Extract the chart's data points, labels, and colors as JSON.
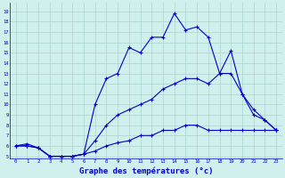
{
  "title": "Graphe des températures (°c)",
  "bg_color": "#cff0ec",
  "grid_color": "#aad4cc",
  "line_color": "#0000cc",
  "x_ticks": [
    0,
    1,
    2,
    3,
    4,
    5,
    6,
    7,
    8,
    9,
    10,
    11,
    12,
    13,
    14,
    15,
    16,
    17,
    18,
    19,
    20,
    21,
    22,
    23
  ],
  "y_ticks": [
    5,
    6,
    7,
    8,
    9,
    10,
    11,
    12,
    13,
    14,
    15,
    16,
    17,
    18,
    19
  ],
  "ylim": [
    4.8,
    19.8
  ],
  "xlim": [
    -0.5,
    23.5
  ],
  "series": [
    {
      "x": [
        0,
        1,
        2,
        3,
        4,
        5,
        6,
        7,
        8,
        9,
        10,
        11,
        12,
        13,
        14,
        15,
        16,
        17,
        18,
        19,
        20,
        21,
        22,
        23
      ],
      "y": [
        6,
        6.2,
        5.8,
        5,
        5,
        5,
        5.2,
        10,
        12.5,
        13,
        15.5,
        15,
        16.5,
        16.5,
        18.8,
        17.2,
        17.5,
        16.5,
        13,
        15.2,
        11,
        9,
        8.5,
        7.5
      ]
    },
    {
      "x": [
        0,
        1,
        2,
        3,
        4,
        5,
        6,
        7,
        8,
        9,
        10,
        11,
        12,
        13,
        14,
        15,
        16,
        17,
        18,
        19,
        20,
        21,
        22,
        23
      ],
      "y": [
        6,
        6,
        5.8,
        5,
        5,
        5,
        5.2,
        6.5,
        8,
        9,
        9.5,
        10,
        10.5,
        11.5,
        12,
        12.5,
        12.5,
        12,
        13,
        13,
        11,
        9.5,
        8.5,
        7.5
      ]
    },
    {
      "x": [
        0,
        1,
        2,
        3,
        4,
        5,
        6,
        7,
        8,
        9,
        10,
        11,
        12,
        13,
        14,
        15,
        16,
        17,
        18,
        19,
        20,
        21,
        22,
        23
      ],
      "y": [
        6,
        6,
        5.8,
        5,
        5,
        5,
        5.2,
        5.5,
        6,
        6.3,
        6.5,
        7,
        7,
        7.5,
        7.5,
        8,
        8,
        7.5,
        7.5,
        7.5,
        7.5,
        7.5,
        7.5,
        7.5
      ]
    }
  ]
}
